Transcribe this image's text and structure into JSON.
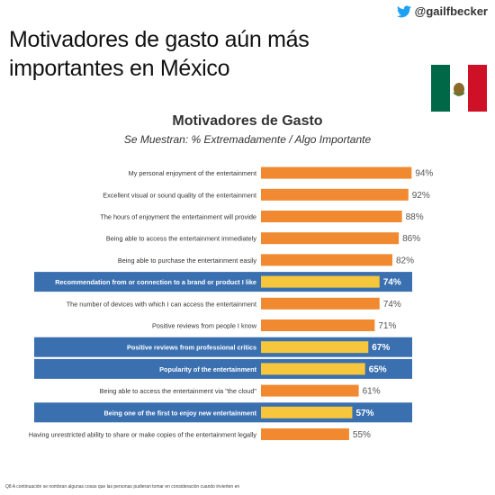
{
  "header": {
    "twitter_handle": "@gailfbecker",
    "title": "Motivadores de gasto aún más importantes en México"
  },
  "colors": {
    "orange": "#f0892f",
    "yellow": "#f6c73c",
    "highlight_band": "#3a6fb0",
    "twitter": "#1da1f2"
  },
  "chart_data": {
    "type": "bar",
    "orientation": "horizontal",
    "title": "Motivadores de Gasto",
    "subtitle": "Se Muestran: % Extremadamente / Algo Importante",
    "categories": [
      "My personal enjoyment of the entertainment",
      "Excellent visual or sound quality of the entertainment",
      "The hours of enjoyment the entertainment will provide",
      "Being able to access the entertainment immediately",
      "Being able to purchase the entertainment easily",
      "Recommendation from or connection to a brand or product I like",
      "The number of devices with which I can access the entertainment",
      "Positive reviews from people I know",
      "Positive reviews from professional critics",
      "Popularity of the entertainment",
      "Being able to access the entertainment via \"the cloud\"",
      "Being one of the first to enjoy new entertainment",
      "Having unrestricted ability to share or make copies of the entertainment legally"
    ],
    "values": [
      94,
      92,
      88,
      86,
      82,
      74,
      74,
      71,
      67,
      65,
      61,
      57,
      55
    ],
    "value_labels": [
      "94%",
      "92%",
      "88%",
      "86%",
      "82%",
      "74%",
      "74%",
      "71%",
      "67%",
      "65%",
      "61%",
      "57%",
      "55%"
    ],
    "highlighted": [
      false,
      false,
      false,
      false,
      false,
      true,
      false,
      false,
      true,
      true,
      false,
      true,
      false
    ],
    "xlim": [
      0,
      100
    ],
    "grid": false,
    "legend": "none"
  },
  "footnote": "Q8 A continuación se nombran algunas cosas que las personas pudieran tomar en consideración cuando invierten en"
}
